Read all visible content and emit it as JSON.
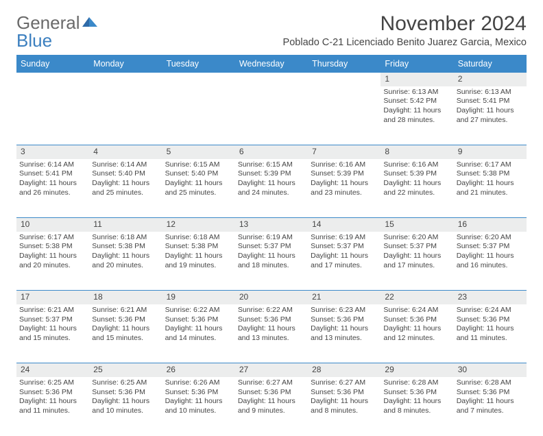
{
  "logo": {
    "text1": "General",
    "text2": "Blue"
  },
  "title": "November 2024",
  "location": "Poblado C-21 Licenciado Benito Juarez Garcia, Mexico",
  "colors": {
    "header_bg": "#3b89c9",
    "header_text": "#ffffff",
    "daynum_bg": "#eceded",
    "border": "#3b89c9",
    "text": "#444444",
    "logo_gray": "#6a6a6a",
    "logo_blue": "#3b7fbf",
    "page_bg": "#ffffff"
  },
  "weekdays": [
    "Sunday",
    "Monday",
    "Tuesday",
    "Wednesday",
    "Thursday",
    "Friday",
    "Saturday"
  ],
  "weeks": [
    [
      null,
      null,
      null,
      null,
      null,
      {
        "n": "1",
        "sunrise": "6:13 AM",
        "sunset": "5:42 PM",
        "daylight": "11 hours and 28 minutes."
      },
      {
        "n": "2",
        "sunrise": "6:13 AM",
        "sunset": "5:41 PM",
        "daylight": "11 hours and 27 minutes."
      }
    ],
    [
      {
        "n": "3",
        "sunrise": "6:14 AM",
        "sunset": "5:41 PM",
        "daylight": "11 hours and 26 minutes."
      },
      {
        "n": "4",
        "sunrise": "6:14 AM",
        "sunset": "5:40 PM",
        "daylight": "11 hours and 25 minutes."
      },
      {
        "n": "5",
        "sunrise": "6:15 AM",
        "sunset": "5:40 PM",
        "daylight": "11 hours and 25 minutes."
      },
      {
        "n": "6",
        "sunrise": "6:15 AM",
        "sunset": "5:39 PM",
        "daylight": "11 hours and 24 minutes."
      },
      {
        "n": "7",
        "sunrise": "6:16 AM",
        "sunset": "5:39 PM",
        "daylight": "11 hours and 23 minutes."
      },
      {
        "n": "8",
        "sunrise": "6:16 AM",
        "sunset": "5:39 PM",
        "daylight": "11 hours and 22 minutes."
      },
      {
        "n": "9",
        "sunrise": "6:17 AM",
        "sunset": "5:38 PM",
        "daylight": "11 hours and 21 minutes."
      }
    ],
    [
      {
        "n": "10",
        "sunrise": "6:17 AM",
        "sunset": "5:38 PM",
        "daylight": "11 hours and 20 minutes."
      },
      {
        "n": "11",
        "sunrise": "6:18 AM",
        "sunset": "5:38 PM",
        "daylight": "11 hours and 20 minutes."
      },
      {
        "n": "12",
        "sunrise": "6:18 AM",
        "sunset": "5:38 PM",
        "daylight": "11 hours and 19 minutes."
      },
      {
        "n": "13",
        "sunrise": "6:19 AM",
        "sunset": "5:37 PM",
        "daylight": "11 hours and 18 minutes."
      },
      {
        "n": "14",
        "sunrise": "6:19 AM",
        "sunset": "5:37 PM",
        "daylight": "11 hours and 17 minutes."
      },
      {
        "n": "15",
        "sunrise": "6:20 AM",
        "sunset": "5:37 PM",
        "daylight": "11 hours and 17 minutes."
      },
      {
        "n": "16",
        "sunrise": "6:20 AM",
        "sunset": "5:37 PM",
        "daylight": "11 hours and 16 minutes."
      }
    ],
    [
      {
        "n": "17",
        "sunrise": "6:21 AM",
        "sunset": "5:37 PM",
        "daylight": "11 hours and 15 minutes."
      },
      {
        "n": "18",
        "sunrise": "6:21 AM",
        "sunset": "5:36 PM",
        "daylight": "11 hours and 15 minutes."
      },
      {
        "n": "19",
        "sunrise": "6:22 AM",
        "sunset": "5:36 PM",
        "daylight": "11 hours and 14 minutes."
      },
      {
        "n": "20",
        "sunrise": "6:22 AM",
        "sunset": "5:36 PM",
        "daylight": "11 hours and 13 minutes."
      },
      {
        "n": "21",
        "sunrise": "6:23 AM",
        "sunset": "5:36 PM",
        "daylight": "11 hours and 13 minutes."
      },
      {
        "n": "22",
        "sunrise": "6:24 AM",
        "sunset": "5:36 PM",
        "daylight": "11 hours and 12 minutes."
      },
      {
        "n": "23",
        "sunrise": "6:24 AM",
        "sunset": "5:36 PM",
        "daylight": "11 hours and 11 minutes."
      }
    ],
    [
      {
        "n": "24",
        "sunrise": "6:25 AM",
        "sunset": "5:36 PM",
        "daylight": "11 hours and 11 minutes."
      },
      {
        "n": "25",
        "sunrise": "6:25 AM",
        "sunset": "5:36 PM",
        "daylight": "11 hours and 10 minutes."
      },
      {
        "n": "26",
        "sunrise": "6:26 AM",
        "sunset": "5:36 PM",
        "daylight": "11 hours and 10 minutes."
      },
      {
        "n": "27",
        "sunrise": "6:27 AM",
        "sunset": "5:36 PM",
        "daylight": "11 hours and 9 minutes."
      },
      {
        "n": "28",
        "sunrise": "6:27 AM",
        "sunset": "5:36 PM",
        "daylight": "11 hours and 8 minutes."
      },
      {
        "n": "29",
        "sunrise": "6:28 AM",
        "sunset": "5:36 PM",
        "daylight": "11 hours and 8 minutes."
      },
      {
        "n": "30",
        "sunrise": "6:28 AM",
        "sunset": "5:36 PM",
        "daylight": "11 hours and 7 minutes."
      }
    ]
  ],
  "labels": {
    "sunrise": "Sunrise:",
    "sunset": "Sunset:",
    "daylight": "Daylight:"
  }
}
